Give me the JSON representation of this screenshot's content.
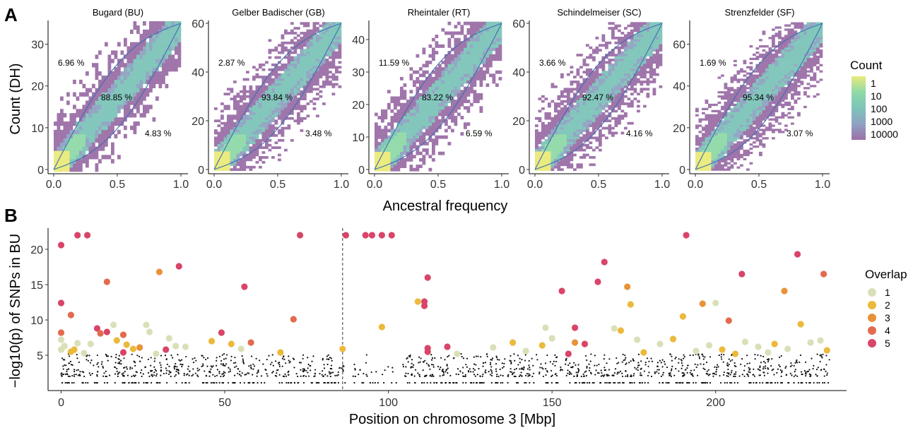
{
  "panels": {
    "a": "A",
    "b": "B"
  },
  "chart_data": [
    {
      "type": "heatmap",
      "panel": "A",
      "xlabel": "Ancestral frequency",
      "ylabel": "Count (DH)",
      "xticks": [
        "0.0",
        "0.5",
        "1.0"
      ],
      "legend": {
        "title": "Count",
        "entries": [
          "1",
          "10",
          "100",
          "1000",
          "10000"
        ],
        "colors": [
          "#9b6fa6",
          "#8fa2c2",
          "#7dc4b8",
          "#8fd9a8",
          "#eaea7a"
        ],
        "placement": "right"
      },
      "facets": [
        {
          "title": "Bugard (BU)",
          "ymax": 35,
          "yticks": [
            "0",
            "10",
            "20",
            "30"
          ],
          "pct_upper": "6.96 %",
          "pct_middle": "88.85 %",
          "pct_lower": "4.83 %"
        },
        {
          "title": "Gelber Badischer (GB)",
          "ymax": 60,
          "yticks": [
            "0",
            "20",
            "40",
            "60"
          ],
          "pct_upper": "2.87 %",
          "pct_middle": "93.84 %",
          "pct_lower": "3.48 %"
        },
        {
          "title": "Rheintaler (RT)",
          "ymax": 45,
          "yticks": [
            "0",
            "10",
            "20",
            "30",
            "40"
          ],
          "pct_upper": "11.59 %",
          "pct_middle": "83.22 %",
          "pct_lower": "6.59 %"
        },
        {
          "title": "Schindelmeiser (SC)",
          "ymax": 60,
          "yticks": [
            "0",
            "20",
            "40",
            "60"
          ],
          "pct_upper": "3.66 %",
          "pct_middle": "92.47 %",
          "pct_lower": "4.16 %"
        },
        {
          "title": "Strenzfelder (SF)",
          "ymax": 70,
          "yticks": [
            "0",
            "20",
            "40",
            "60"
          ],
          "pct_upper": "1.69 %",
          "pct_middle": "95.34 %",
          "pct_lower": "3.07 %"
        }
      ]
    },
    {
      "type": "scatter",
      "panel": "B",
      "xlabel": "Position on chromosome 3 [Mbp]",
      "ylabel": "−log10(p) of SNPs in BU",
      "xlim": [
        -4,
        240
      ],
      "ylim": [
        0,
        23
      ],
      "xticks": [
        "0",
        "50",
        "100",
        "150",
        "200"
      ],
      "yticks": [
        "5",
        "10",
        "15",
        "20"
      ],
      "vline_x": 86,
      "legend": {
        "title": "Overlap",
        "entries": [
          "1",
          "2",
          "3",
          "4",
          "5"
        ],
        "colors": [
          "#d9e0b8",
          "#ebb93c",
          "#e8923a",
          "#e36a4e",
          "#d94468"
        ],
        "placement": "right"
      },
      "points": [
        {
          "x": 0,
          "y": 20.6,
          "o": 5
        },
        {
          "x": 5,
          "y": 22,
          "o": 5
        },
        {
          "x": 8,
          "y": 22,
          "o": 5
        },
        {
          "x": 73,
          "y": 22,
          "o": 5
        },
        {
          "x": 87,
          "y": 22,
          "o": 5
        },
        {
          "x": 93,
          "y": 22,
          "o": 5
        },
        {
          "x": 95,
          "y": 22,
          "o": 5
        },
        {
          "x": 98,
          "y": 22,
          "o": 5
        },
        {
          "x": 101,
          "y": 22,
          "o": 5
        },
        {
          "x": 191,
          "y": 22,
          "o": 5
        },
        {
          "x": 0,
          "y": 12.4,
          "o": 5
        },
        {
          "x": 36,
          "y": 17.6,
          "o": 5
        },
        {
          "x": 30,
          "y": 16.8,
          "o": 3
        },
        {
          "x": 14,
          "y": 15.4,
          "o": 4
        },
        {
          "x": 56,
          "y": 14.7,
          "o": 5
        },
        {
          "x": 3,
          "y": 10.7,
          "o": 4
        },
        {
          "x": 71,
          "y": 10.1,
          "o": 4
        },
        {
          "x": 109,
          "y": 12.6,
          "o": 2
        },
        {
          "x": 111,
          "y": 12.6,
          "o": 5
        },
        {
          "x": 111,
          "y": 12,
          "o": 5
        },
        {
          "x": 112,
          "y": 16,
          "o": 5
        },
        {
          "x": 98,
          "y": 9,
          "o": 2
        },
        {
          "x": 112,
          "y": 6,
          "o": 5
        },
        {
          "x": 112,
          "y": 5.5,
          "o": 5
        },
        {
          "x": 118,
          "y": 6.2,
          "o": 5
        },
        {
          "x": 153,
          "y": 14.1,
          "o": 5
        },
        {
          "x": 166,
          "y": 18.2,
          "o": 5
        },
        {
          "x": 164,
          "y": 15.4,
          "o": 5
        },
        {
          "x": 173,
          "y": 14.7,
          "o": 3
        },
        {
          "x": 174,
          "y": 12.2,
          "o": 2
        },
        {
          "x": 190,
          "y": 10.5,
          "o": 2
        },
        {
          "x": 196,
          "y": 12.3,
          "o": 3
        },
        {
          "x": 200,
          "y": 12.4,
          "o": 1
        },
        {
          "x": 204,
          "y": 9.9,
          "o": 4
        },
        {
          "x": 208,
          "y": 16.5,
          "o": 5
        },
        {
          "x": 221,
          "y": 14.1,
          "o": 3
        },
        {
          "x": 225,
          "y": 19.3,
          "o": 5
        },
        {
          "x": 226,
          "y": 9.4,
          "o": 2
        },
        {
          "x": 233,
          "y": 16.5,
          "o": 4
        },
        {
          "x": 157,
          "y": 8.9,
          "o": 5
        },
        {
          "x": 171,
          "y": 8.5,
          "o": 2
        },
        {
          "x": 169,
          "y": 8.8,
          "o": 1
        },
        {
          "x": 160,
          "y": 6.6,
          "o": 5
        },
        {
          "x": 157,
          "y": 6.8,
          "o": 3
        },
        {
          "x": 0,
          "y": 8.2,
          "o": 4
        },
        {
          "x": 0,
          "y": 7.2,
          "o": 1
        },
        {
          "x": 0,
          "y": 5.8,
          "o": 1
        },
        {
          "x": 1,
          "y": 6.3,
          "o": 1
        },
        {
          "x": 3,
          "y": 5.5,
          "o": 2
        },
        {
          "x": 4,
          "y": 5.8,
          "o": 2
        },
        {
          "x": 5,
          "y": 6.7,
          "o": 1
        },
        {
          "x": 7,
          "y": 5.3,
          "o": 1
        },
        {
          "x": 9,
          "y": 6.6,
          "o": 1
        },
        {
          "x": 11,
          "y": 8.8,
          "o": 5
        },
        {
          "x": 12,
          "y": 8.1,
          "o": 4
        },
        {
          "x": 14,
          "y": 8.3,
          "o": 5
        },
        {
          "x": 16,
          "y": 9.3,
          "o": 1
        },
        {
          "x": 17,
          "y": 7.1,
          "o": 2
        },
        {
          "x": 19,
          "y": 7.9,
          "o": 4
        },
        {
          "x": 20,
          "y": 6.5,
          "o": 2
        },
        {
          "x": 19,
          "y": 5.4,
          "o": 5
        },
        {
          "x": 22,
          "y": 5.9,
          "o": 2
        },
        {
          "x": 24,
          "y": 6.1,
          "o": 3
        },
        {
          "x": 26,
          "y": 9.3,
          "o": 1
        },
        {
          "x": 27,
          "y": 8.3,
          "o": 1
        },
        {
          "x": 29,
          "y": 5.2,
          "o": 1
        },
        {
          "x": 32,
          "y": 5.8,
          "o": 5
        },
        {
          "x": 33,
          "y": 7.4,
          "o": 1
        },
        {
          "x": 35,
          "y": 6.3,
          "o": 1
        },
        {
          "x": 38,
          "y": 6.2,
          "o": 1
        },
        {
          "x": 46,
          "y": 7,
          "o": 2
        },
        {
          "x": 49,
          "y": 8.2,
          "o": 5
        },
        {
          "x": 52,
          "y": 6.6,
          "o": 2
        },
        {
          "x": 55,
          "y": 5.9,
          "o": 1
        },
        {
          "x": 58,
          "y": 6.8,
          "o": 4
        },
        {
          "x": 67,
          "y": 5.4,
          "o": 2
        },
        {
          "x": 86,
          "y": 5.9,
          "o": 2
        },
        {
          "x": 121,
          "y": 5.2,
          "o": 1
        },
        {
          "x": 132,
          "y": 6.1,
          "o": 1
        },
        {
          "x": 138,
          "y": 6.8,
          "o": 2
        },
        {
          "x": 142,
          "y": 5.6,
          "o": 1
        },
        {
          "x": 147,
          "y": 6.4,
          "o": 2
        },
        {
          "x": 148,
          "y": 8.9,
          "o": 1
        },
        {
          "x": 150,
          "y": 7.4,
          "o": 1
        },
        {
          "x": 155,
          "y": 5.2,
          "o": 5
        },
        {
          "x": 176,
          "y": 7.2,
          "o": 1
        },
        {
          "x": 178,
          "y": 5.4,
          "o": 2
        },
        {
          "x": 183,
          "y": 6.6,
          "o": 1
        },
        {
          "x": 187,
          "y": 7.3,
          "o": 2
        },
        {
          "x": 194,
          "y": 5.6,
          "o": 1
        },
        {
          "x": 198,
          "y": 6.4,
          "o": 1
        },
        {
          "x": 202,
          "y": 5.8,
          "o": 2
        },
        {
          "x": 206,
          "y": 5.2,
          "o": 2
        },
        {
          "x": 209,
          "y": 6.9,
          "o": 1
        },
        {
          "x": 213,
          "y": 6.2,
          "o": 1
        },
        {
          "x": 216,
          "y": 5.4,
          "o": 1
        },
        {
          "x": 218,
          "y": 6.6,
          "o": 2
        },
        {
          "x": 222,
          "y": 5.9,
          "o": 1
        },
        {
          "x": 229,
          "y": 6.8,
          "o": 1
        },
        {
          "x": 232,
          "y": 7.1,
          "o": 1
        },
        {
          "x": 234,
          "y": 5.7,
          "o": 2
        }
      ]
    }
  ]
}
